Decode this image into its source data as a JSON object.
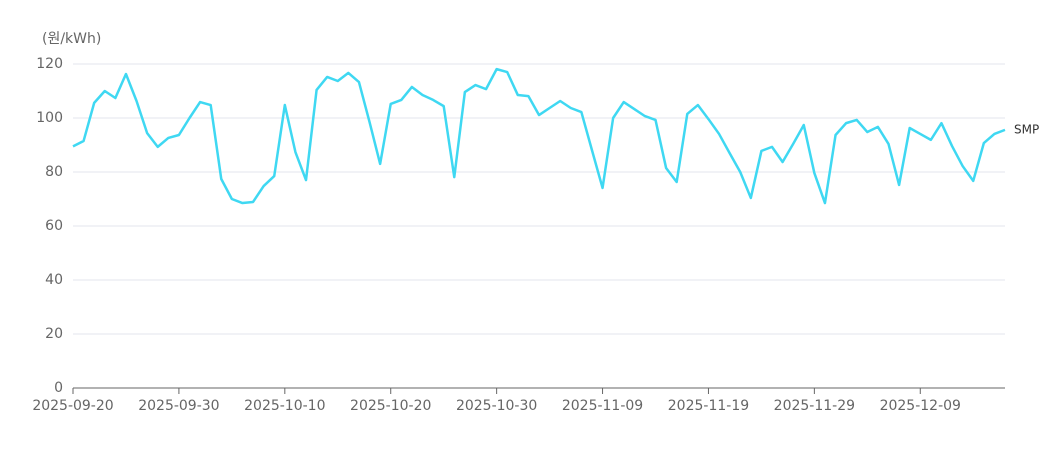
{
  "chart_data": {
    "type": "line",
    "y_label": "(원/kWh)",
    "x": [
      "2025-09-20",
      "2025-09-21",
      "2025-09-22",
      "2025-09-23",
      "2025-09-24",
      "2025-09-25",
      "2025-09-26",
      "2025-09-27",
      "2025-09-28",
      "2025-09-29",
      "2025-09-30",
      "2025-10-01",
      "2025-10-02",
      "2025-10-03",
      "2025-10-04",
      "2025-10-05",
      "2025-10-06",
      "2025-10-07",
      "2025-10-08",
      "2025-10-09",
      "2025-10-10",
      "2025-10-11",
      "2025-10-12",
      "2025-10-13",
      "2025-10-14",
      "2025-10-15",
      "2025-10-16",
      "2025-10-17",
      "2025-10-18",
      "2025-10-19",
      "2025-10-20",
      "2025-10-21",
      "2025-10-22",
      "2025-10-23",
      "2025-10-24",
      "2025-10-25",
      "2025-10-26",
      "2025-10-27",
      "2025-10-28",
      "2025-10-29",
      "2025-10-30",
      "2025-10-31",
      "2025-11-01",
      "2025-11-02",
      "2025-11-03",
      "2025-11-04",
      "2025-11-05",
      "2025-11-06",
      "2025-11-07",
      "2025-11-08",
      "2025-11-09",
      "2025-11-10",
      "2025-11-11",
      "2025-11-12",
      "2025-11-13",
      "2025-11-14",
      "2025-11-15",
      "2025-11-16",
      "2025-11-17",
      "2025-11-18",
      "2025-11-19",
      "2025-11-20",
      "2025-11-21",
      "2025-11-22",
      "2025-11-23",
      "2025-11-24",
      "2025-11-25",
      "2025-11-26",
      "2025-11-27",
      "2025-11-28",
      "2025-11-29",
      "2025-11-30",
      "2025-12-01",
      "2025-12-02",
      "2025-12-03",
      "2025-12-04",
      "2025-12-05",
      "2025-12-06",
      "2025-12-07",
      "2025-12-08",
      "2025-12-09",
      "2025-12-10",
      "2025-12-11",
      "2025-12-12",
      "2025-12-13",
      "2025-12-14",
      "2025-12-15",
      "2025-12-16",
      "2025-12-17"
    ],
    "series": [
      {
        "name": "SMP",
        "color": "#3fd8f2",
        "values": [
          89.5,
          91.5,
          105.6,
          110,
          107.4,
          116.3,
          106.3,
          94.4,
          89.3,
          92.6,
          93.7,
          100,
          105.9,
          104.8,
          77.4,
          70,
          68.5,
          68.9,
          74.8,
          78.5,
          104.8,
          87.4,
          77,
          110.4,
          115.2,
          113.7,
          116.7,
          113.3,
          98.5,
          83,
          105.2,
          106.7,
          111.5,
          108.5,
          106.7,
          104.4,
          78.1,
          109.6,
          112.2,
          110.7,
          118.1,
          117,
          108.5,
          108.1,
          101.1,
          103.7,
          106.3,
          103.7,
          102.2,
          88.1,
          74.1,
          100,
          105.9,
          103.3,
          100.7,
          99.3,
          81.5,
          76.3,
          101.5,
          104.8,
          99.6,
          94.1,
          87,
          80,
          70.4,
          87.8,
          89.3,
          83.7,
          90.4,
          97.4,
          79.6,
          68.5,
          93.7,
          98.1,
          99.3,
          94.8,
          96.7,
          90.4,
          75.2,
          96.3,
          94.1,
          91.9,
          98.1,
          89.6,
          82.2,
          76.7,
          90.7,
          94.1,
          95.6
        ]
      }
    ],
    "xlim": [
      "2025-09-20",
      "2025-12-17"
    ],
    "xticks": [
      "2025-09-20",
      "2025-09-30",
      "2025-10-10",
      "2025-10-20",
      "2025-10-30",
      "2025-11-09",
      "2025-11-19",
      "2025-11-29",
      "2025-12-09"
    ],
    "ylim": [
      0,
      120
    ],
    "yticks": [
      0,
      20,
      40,
      60,
      80,
      100,
      120
    ],
    "grid": true
  }
}
